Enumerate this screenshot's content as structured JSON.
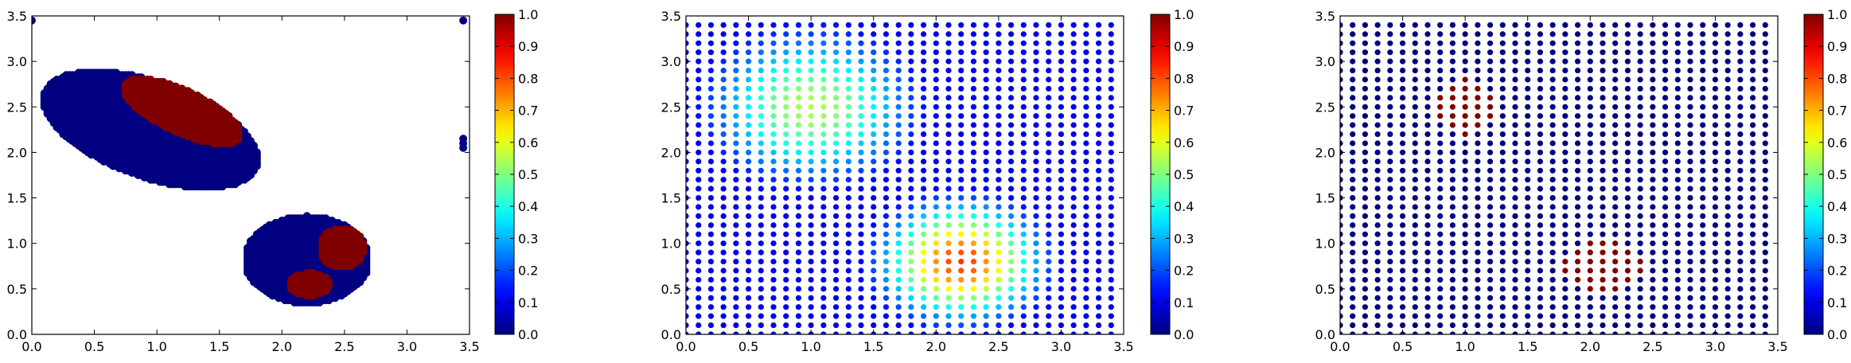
{
  "chart_data": [
    {
      "type": "scatter",
      "xlim": [
        0.0,
        3.5
      ],
      "ylim": [
        0.0,
        3.5
      ],
      "xticks": [
        "0.0",
        "0.5",
        "1.0",
        "1.5",
        "2.0",
        "2.5",
        "3.0",
        "3.5"
      ],
      "yticks": [
        "0.0",
        "0.5",
        "1.0",
        "1.5",
        "2.0",
        "2.5",
        "3.0",
        "3.5"
      ],
      "colorbar": {
        "min": 0.0,
        "max": 1.0,
        "ticks": [
          "0.0",
          "0.1",
          "0.2",
          "0.3",
          "0.4",
          "0.5",
          "0.6",
          "0.7",
          "0.8",
          "0.9",
          "1.0"
        ],
        "colormap": "jet"
      },
      "grid": false,
      "description": "points with value 0 (dark blue) or 1 (dark red)",
      "regions": [
        {
          "shape": "ellipse",
          "cx": 0.95,
          "cy": 2.25,
          "rx": 0.5,
          "ry": 0.95,
          "angle_deg": 60,
          "value": 0
        },
        {
          "shape": "ellipse",
          "cx": 1.2,
          "cy": 2.45,
          "rx": 0.22,
          "ry": 0.55,
          "angle_deg": 55,
          "value": 1
        },
        {
          "shape": "ellipse",
          "cx": 2.2,
          "cy": 0.82,
          "rx": 0.5,
          "ry": 0.48,
          "angle_deg": 0,
          "value": 0
        },
        {
          "shape": "ellipse",
          "cx": 2.48,
          "cy": 0.95,
          "rx": 0.18,
          "ry": 0.22,
          "angle_deg": 0,
          "value": 1
        },
        {
          "shape": "ellipse",
          "cx": 2.22,
          "cy": 0.55,
          "rx": 0.16,
          "ry": 0.13,
          "angle_deg": 0,
          "value": 1
        }
      ],
      "extra_points": [
        {
          "x": 0.0,
          "y": 3.45,
          "value": 0
        },
        {
          "x": 3.45,
          "y": 3.45,
          "value": 0
        },
        {
          "x": 3.45,
          "y": 2.15,
          "value": 0
        },
        {
          "x": 3.45,
          "y": 2.1,
          "value": 0
        },
        {
          "x": 3.45,
          "y": 2.05,
          "value": 0
        }
      ]
    },
    {
      "type": "scatter",
      "xlim": [
        0.0,
        3.5
      ],
      "ylim": [
        0.0,
        3.5
      ],
      "xticks": [
        "0.0",
        "0.5",
        "1.0",
        "1.5",
        "2.0",
        "2.5",
        "3.0",
        "3.5"
      ],
      "yticks": [
        "0.0",
        "0.5",
        "1.0",
        "1.5",
        "2.0",
        "2.5",
        "3.0",
        "3.5"
      ],
      "colorbar": {
        "min": 0.0,
        "max": 1.0,
        "ticks": [
          "0.0",
          "0.1",
          "0.2",
          "0.3",
          "0.4",
          "0.5",
          "0.6",
          "0.7",
          "0.8",
          "0.9",
          "1.0"
        ],
        "colormap": "jet"
      },
      "grid": false,
      "description": "regular grid of points, x and y from 0 to 3.4 step 0.1, coloured by a smooth field with two gaussian bumps",
      "grid_points": {
        "start": 0.0,
        "stop": 3.4,
        "step": 0.1
      },
      "field": [
        {
          "cx": 1.0,
          "cy": 2.5,
          "sigma": 0.55,
          "amplitude": 0.55
        },
        {
          "cx": 2.2,
          "cy": 0.8,
          "sigma": 0.42,
          "amplitude": 0.82
        }
      ]
    },
    {
      "type": "scatter",
      "xlim": [
        0.0,
        3.5
      ],
      "ylim": [
        0.0,
        3.5
      ],
      "xticks": [
        "0.0",
        "0.5",
        "1.0",
        "1.5",
        "2.0",
        "2.5",
        "3.0",
        "3.5"
      ],
      "yticks": [
        "0.0",
        "0.5",
        "1.0",
        "1.5",
        "2.0",
        "2.5",
        "3.0",
        "3.5"
      ],
      "colorbar": {
        "min": 0.0,
        "max": 1.0,
        "ticks": [
          "0.0",
          "0.1",
          "0.2",
          "0.3",
          "0.4",
          "0.5",
          "0.6",
          "0.7",
          "0.8",
          "0.9",
          "1.0"
        ],
        "colormap": "jet"
      },
      "grid": false,
      "description": "regular grid of points, x and y from 0 to 3.4 step 0.1, value 1 inside two patches and 0 elsewhere",
      "grid_points": {
        "start": 0.0,
        "stop": 3.4,
        "step": 0.1
      },
      "ones": [
        {
          "shape": "ellipse",
          "cx": 1.0,
          "cy": 2.5,
          "rx": 0.22,
          "ry": 0.32
        },
        {
          "shape": "ellipse",
          "cx": 2.1,
          "cy": 0.75,
          "rx": 0.35,
          "ry": 0.27
        }
      ]
    }
  ]
}
